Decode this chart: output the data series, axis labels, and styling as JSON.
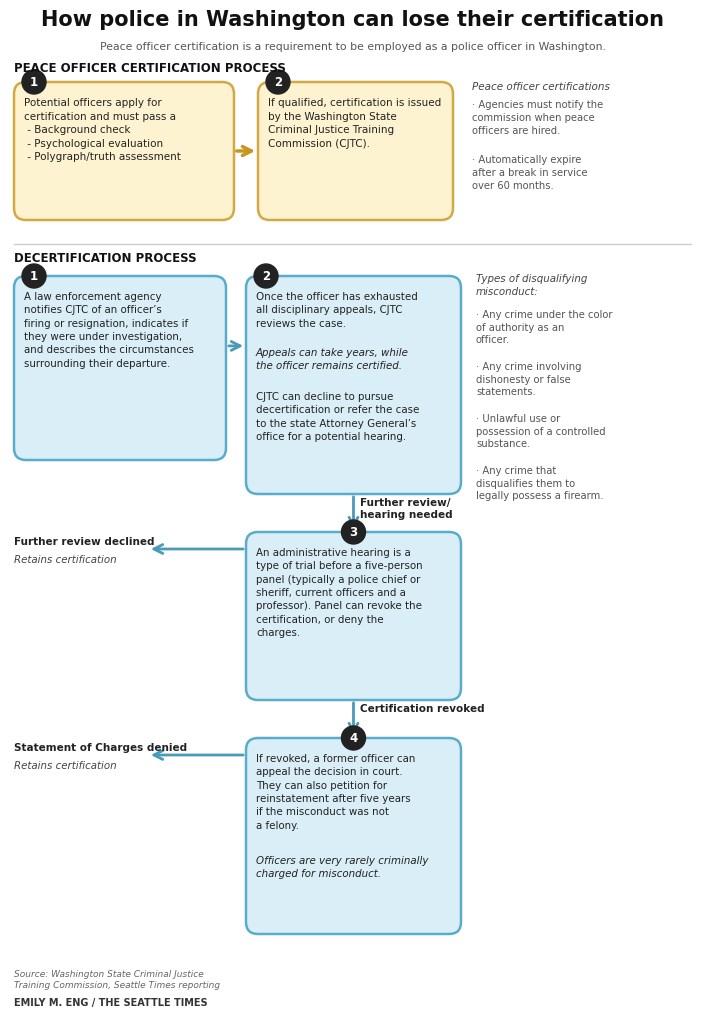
{
  "title": "How police in Washington can lose their certification",
  "subtitle": "Peace officer certification is a requirement to be employed as a police officer in Washington.",
  "section1_label": "PEACE OFFICER CERTIFICATION PROCESS",
  "section2_label": "DECERTIFICATION PROCESS",
  "cert_box1_text": "Potential officers apply for\ncertification and must pass a\n - Background check\n - Psychological evaluation\n - Polygraph/truth assessment",
  "cert_box2_text": "If qualified, certification is issued\nby the Washington State\nCriminal Justice Training\nCommission (CJTC).",
  "cert_side_title": "Peace officer certifications",
  "cert_side_bullets": [
    "Agencies must notify the\ncommission when peace\nofficers are hired.",
    "Automatically expire\nafter a break in service\nover 60 months."
  ],
  "decert_box1_text": "A law enforcement agency\nnotifies CJTC of an officer’s\nfiring or resignation, indicates if\nthey were under investigation,\nand describes the circumstances\nsurrounding their departure.",
  "decert_box2_text_normal": "Once the officer has exhausted\nall disciplinary appeals, CJTC\nreviews the case.",
  "decert_box2_text_italic": "Appeals can take years, while\nthe officer remains certified.",
  "decert_box2_text_normal2": "CJTC can decline to pursue\ndecertification or refer the case\nto the state Attorney General’s\noffice for a potential hearing.",
  "decert_box3_text": "An administrative hearing is a\ntype of trial before a five-person\npanel (typically a police chief or\nsheriff, current officers and a\nprofessor). Panel can revoke the\ncertification, or deny the\ncharges.",
  "decert_box4_text_normal": "If revoked, a former officer can\nappeal the decision in court.\nThey can also petition for\nreinstatement after five years\nif the misconduct was not\na felony.",
  "decert_box4_text_italic": "Officers are very rarely criminally\ncharged for misconduct.",
  "arrow1_label": "Further review/\nhearing needed",
  "arrow2_label": "Certification revoked",
  "side_declined_bold": "Further review declined",
  "side_declined_italic": "Retains certification",
  "side_charges_bold": "Statement of Charges denied",
  "side_charges_italic": "Retains certification",
  "disq_title": "Types of disqualifying\nmisconduct:",
  "disq_bullets": [
    "Any crime under the color\nof authority as an\nofficer.",
    "Any crime involving\ndishonesty or false\nstatements.",
    "Unlawful use or\npossession of a controlled\nsubstance.",
    "Any crime that\ndisqualifies them to\nlegally possess a firearm."
  ],
  "source": "Source: Washington State Criminal Justice\nTraining Commission, Seattle Times reporting",
  "byline": "EMILY M. ENG / THE SEATTLE TIMES",
  "bg_color": "#ffffff",
  "cert_box_fill": "#fdf3d0",
  "cert_box_edge": "#d4a843",
  "decert_box_fill": "#daeef7",
  "decert_box_edge": "#5aaccc",
  "arrow_color_cert": "#c8961e",
  "arrow_color_decert": "#4a9ab8",
  "arrow_color_left": "#4a9ab8",
  "circle_fill": "#222222",
  "circle_text_color": "#ffffff"
}
